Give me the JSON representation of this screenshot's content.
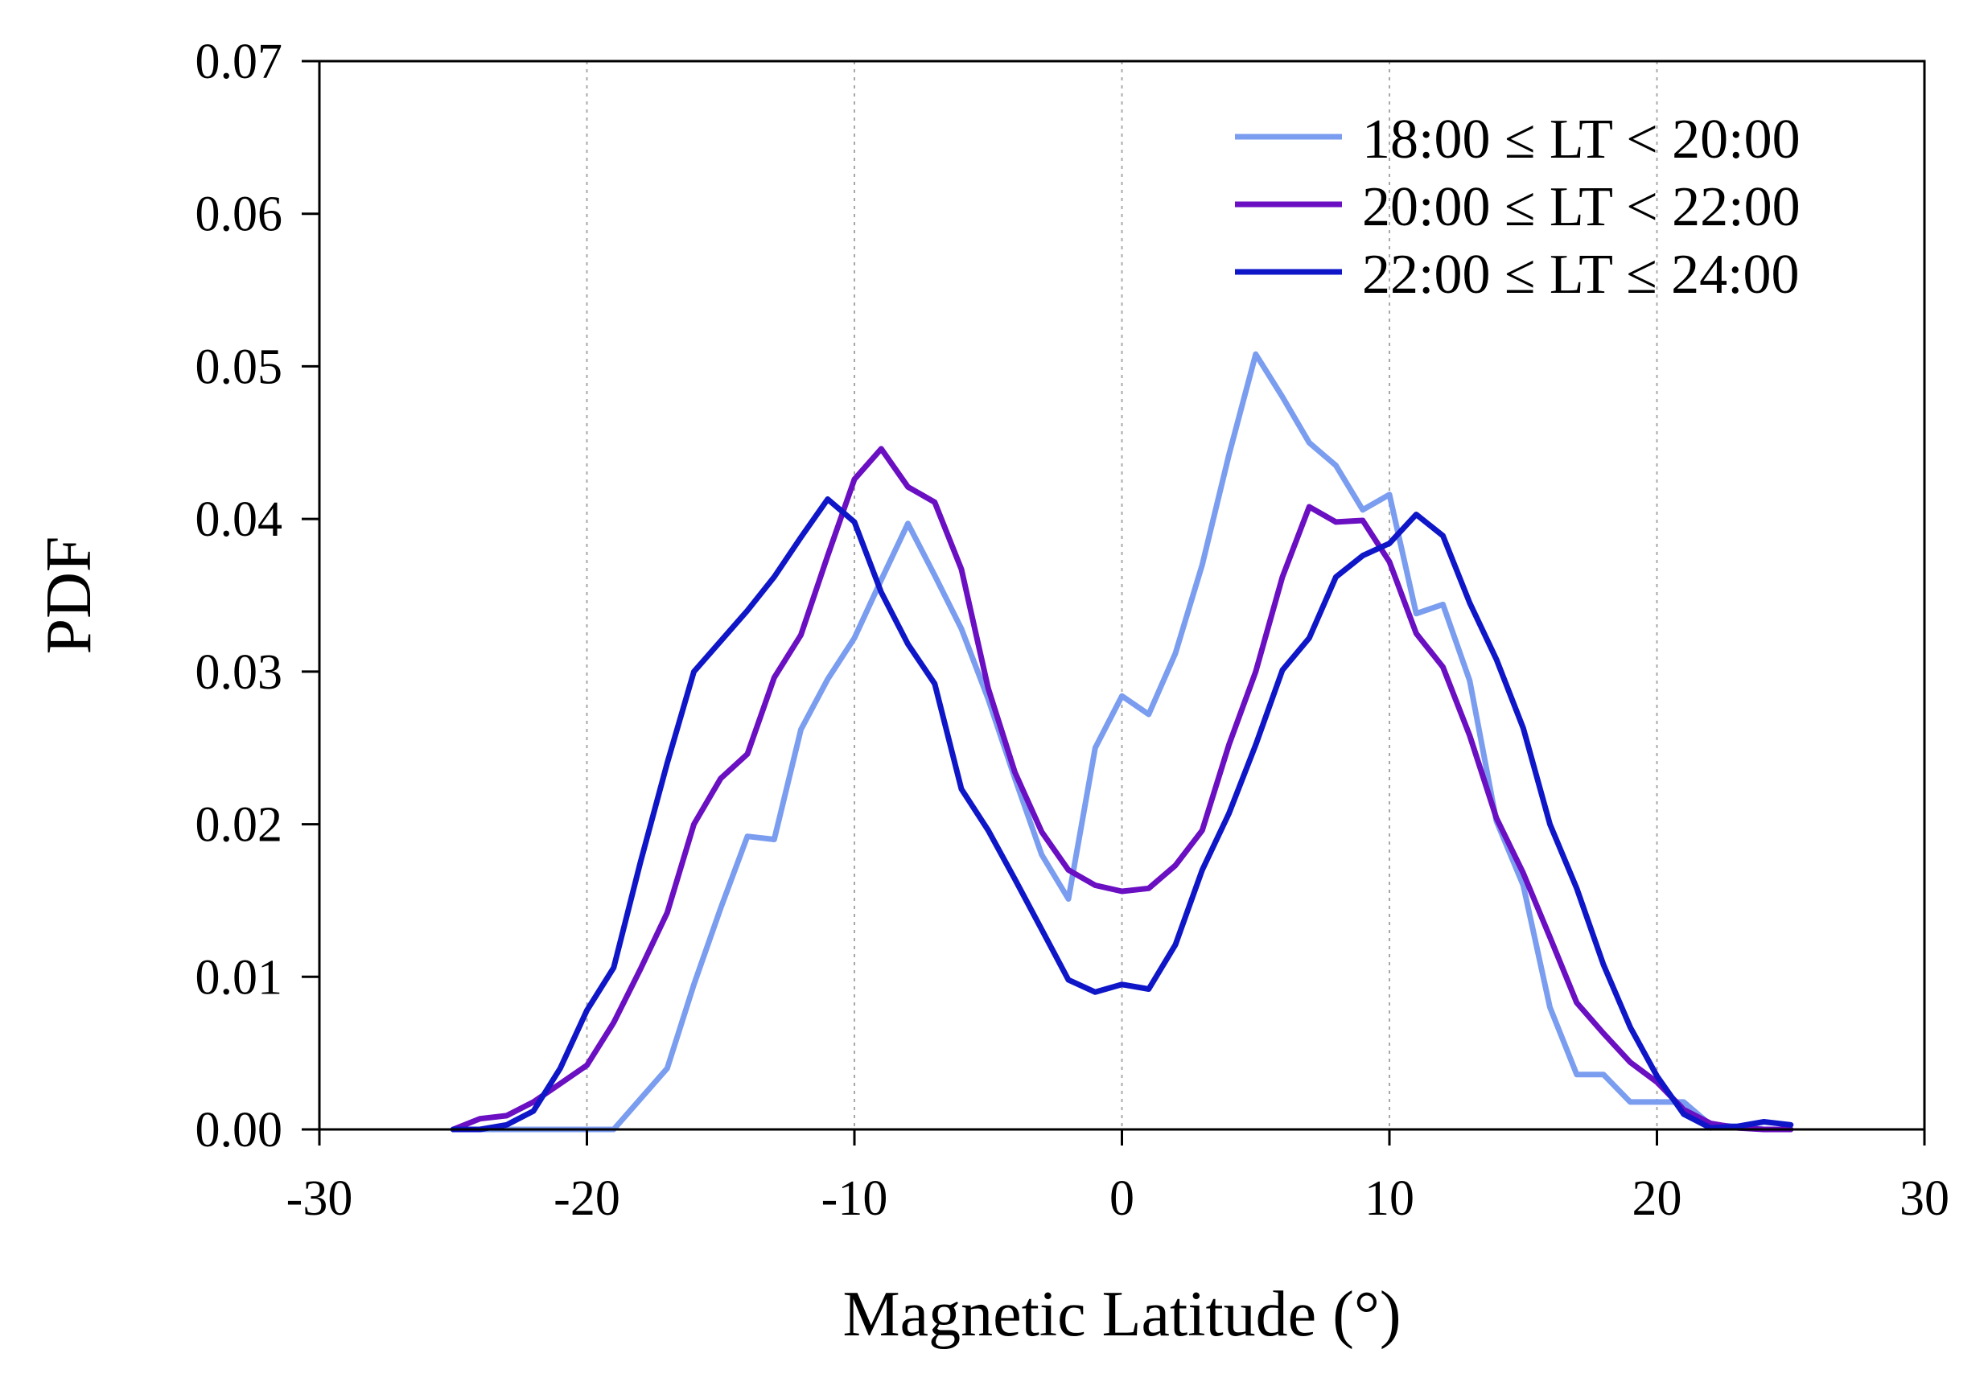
{
  "chart_data": {
    "type": "line",
    "title": "",
    "xlabel": "Magnetic Latitude (°)",
    "ylabel": "PDF",
    "xlim": [
      -30,
      30
    ],
    "ylim": [
      0,
      0.07
    ],
    "xticks": [
      -30,
      -20,
      -10,
      0,
      10,
      20,
      30
    ],
    "xtick_labels": [
      "-30",
      "-20",
      "-10",
      "0",
      "10",
      "20",
      "30"
    ],
    "yticks": [
      0,
      0.01,
      0.02,
      0.03,
      0.04,
      0.05,
      0.06,
      0.07
    ],
    "ytick_labels": [
      "0.00",
      "0.01",
      "0.02",
      "0.03",
      "0.04",
      "0.05",
      "0.06",
      "0.07"
    ],
    "grid": "vertical dotted at major x ticks",
    "legend_position": "top-right",
    "x": [
      -25,
      -24,
      -23,
      -22,
      -21,
      -20,
      -19,
      -18,
      -17,
      -16,
      -15,
      -14,
      -13,
      -12,
      -11,
      -10,
      -9,
      -8,
      -7,
      -6,
      -5,
      -4,
      -3,
      -2,
      -1,
      0,
      1,
      2,
      3,
      4,
      5,
      6,
      7,
      8,
      9,
      10,
      11,
      12,
      13,
      14,
      15,
      16,
      17,
      18,
      19,
      20,
      21,
      22,
      23,
      24,
      25
    ],
    "series": [
      {
        "name": "18:00 ≤ LT < 20:00",
        "color": "#7b9df0",
        "values": [
          0,
          0,
          0,
          0,
          0,
          0,
          0,
          0.002,
          0.004,
          0.0095,
          0.0145,
          0.0192,
          0.019,
          0.0262,
          0.0295,
          0.0322,
          0.036,
          0.0397,
          0.0363,
          0.0328,
          0.0282,
          0.023,
          0.018,
          0.0151,
          0.025,
          0.0284,
          0.0272,
          0.0312,
          0.037,
          0.0442,
          0.0508,
          0.048,
          0.045,
          0.0435,
          0.0406,
          0.0416,
          0.0338,
          0.0344,
          0.0294,
          0.0202,
          0.016,
          0.008,
          0.0036,
          0.0036,
          0.0018,
          0.0018,
          0.0018,
          0.0003,
          0.0002,
          0,
          0
        ]
      },
      {
        "name": "20:00 ≤ LT < 22:00",
        "color": "#6a0fc2",
        "values": [
          0,
          0.0007,
          0.0009,
          0.0018,
          0.003,
          0.0042,
          0.007,
          0.0105,
          0.0142,
          0.02,
          0.023,
          0.0246,
          0.0296,
          0.0324,
          0.0376,
          0.0426,
          0.0446,
          0.0421,
          0.0411,
          0.0367,
          0.0289,
          0.0234,
          0.0195,
          0.017,
          0.016,
          0.0156,
          0.0158,
          0.0173,
          0.0196,
          0.0252,
          0.03,
          0.0362,
          0.0408,
          0.0398,
          0.0399,
          0.0372,
          0.0325,
          0.0303,
          0.0258,
          0.0204,
          0.0168,
          0.0126,
          0.0083,
          0.0063,
          0.0044,
          0.0031,
          0.0013,
          0.0004,
          0.0001,
          0,
          0
        ]
      },
      {
        "name": "22:00 ≤ LT ≤ 24:00",
        "color": "#0f16c8",
        "values": [
          0,
          0,
          0.0003,
          0.0012,
          0.004,
          0.0078,
          0.0106,
          0.0175,
          0.024,
          0.03,
          0.032,
          0.034,
          0.0362,
          0.0388,
          0.0413,
          0.0398,
          0.0352,
          0.0318,
          0.0292,
          0.0223,
          0.0196,
          0.0164,
          0.0131,
          0.0098,
          0.009,
          0.0095,
          0.0092,
          0.0121,
          0.017,
          0.0207,
          0.0252,
          0.0301,
          0.0322,
          0.0362,
          0.0376,
          0.0384,
          0.0403,
          0.0389,
          0.0345,
          0.0308,
          0.0263,
          0.02,
          0.0158,
          0.0108,
          0.0067,
          0.0035,
          0.001,
          0.0001,
          0.0002,
          0.0005,
          0.0003
        ]
      }
    ]
  }
}
